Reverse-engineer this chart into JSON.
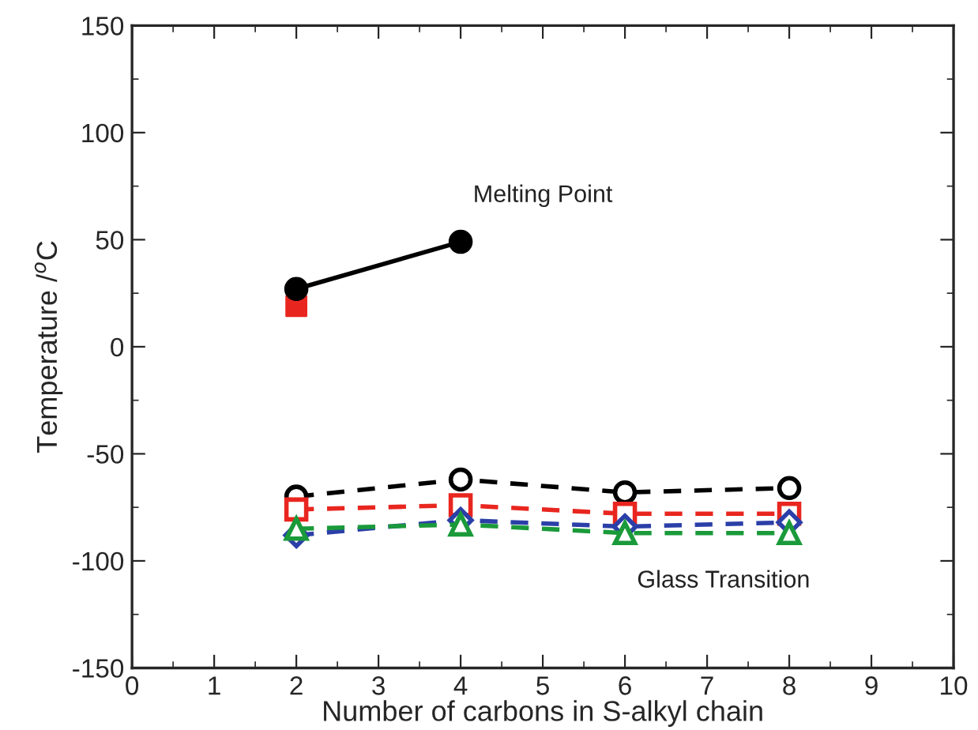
{
  "chart_data": {
    "type": "line",
    "xlabel": "Number of carbons in S-alkyl chain",
    "ylabel": "Temperature /$^{o}$C",
    "xlim": [
      0,
      10
    ],
    "xticks": [
      0,
      1,
      2,
      3,
      4,
      5,
      6,
      7,
      8,
      9,
      10
    ],
    "ylim": [
      -150,
      150
    ],
    "yticks": [
      -150,
      -100,
      -50,
      0,
      50,
      100,
      150
    ],
    "grid": false,
    "legend": false,
    "series": [
      {
        "color": "#000000",
        "x": [
          2,
          4
        ],
        "values": [
          27,
          49
        ],
        "marker": "circle",
        "line_style": "solid"
      },
      {
        "type": "scatter",
        "color": "#e8261f",
        "x": [
          2
        ],
        "values": [
          19
        ],
        "marker": "square"
      },
      {
        "color": "#000000",
        "x": [
          2,
          4,
          6,
          8
        ],
        "values": [
          -70,
          -62,
          -68,
          -66
        ],
        "marker": "circle",
        "line_style": "dashed"
      },
      {
        "color": "#e8261f",
        "x": [
          2,
          4,
          6,
          8
        ],
        "values": [
          -76,
          -74,
          -78,
          -78
        ],
        "marker": "square",
        "line_style": "dashed"
      },
      {
        "color": "#2b3fa8",
        "x": [
          2,
          4,
          6,
          8
        ],
        "values": [
          -88,
          -81,
          -84,
          -82
        ],
        "marker": "diamond",
        "line_style": "dashed"
      },
      {
        "color": "#1a9a3a",
        "x": [
          2,
          4,
          6,
          8
        ],
        "values": [
          -85,
          -83,
          -87,
          -87
        ],
        "marker": "triangle",
        "line_style": "dashed"
      }
    ],
    "annotations": [
      "Melting Point",
      "Glass Transition"
    ]
  }
}
